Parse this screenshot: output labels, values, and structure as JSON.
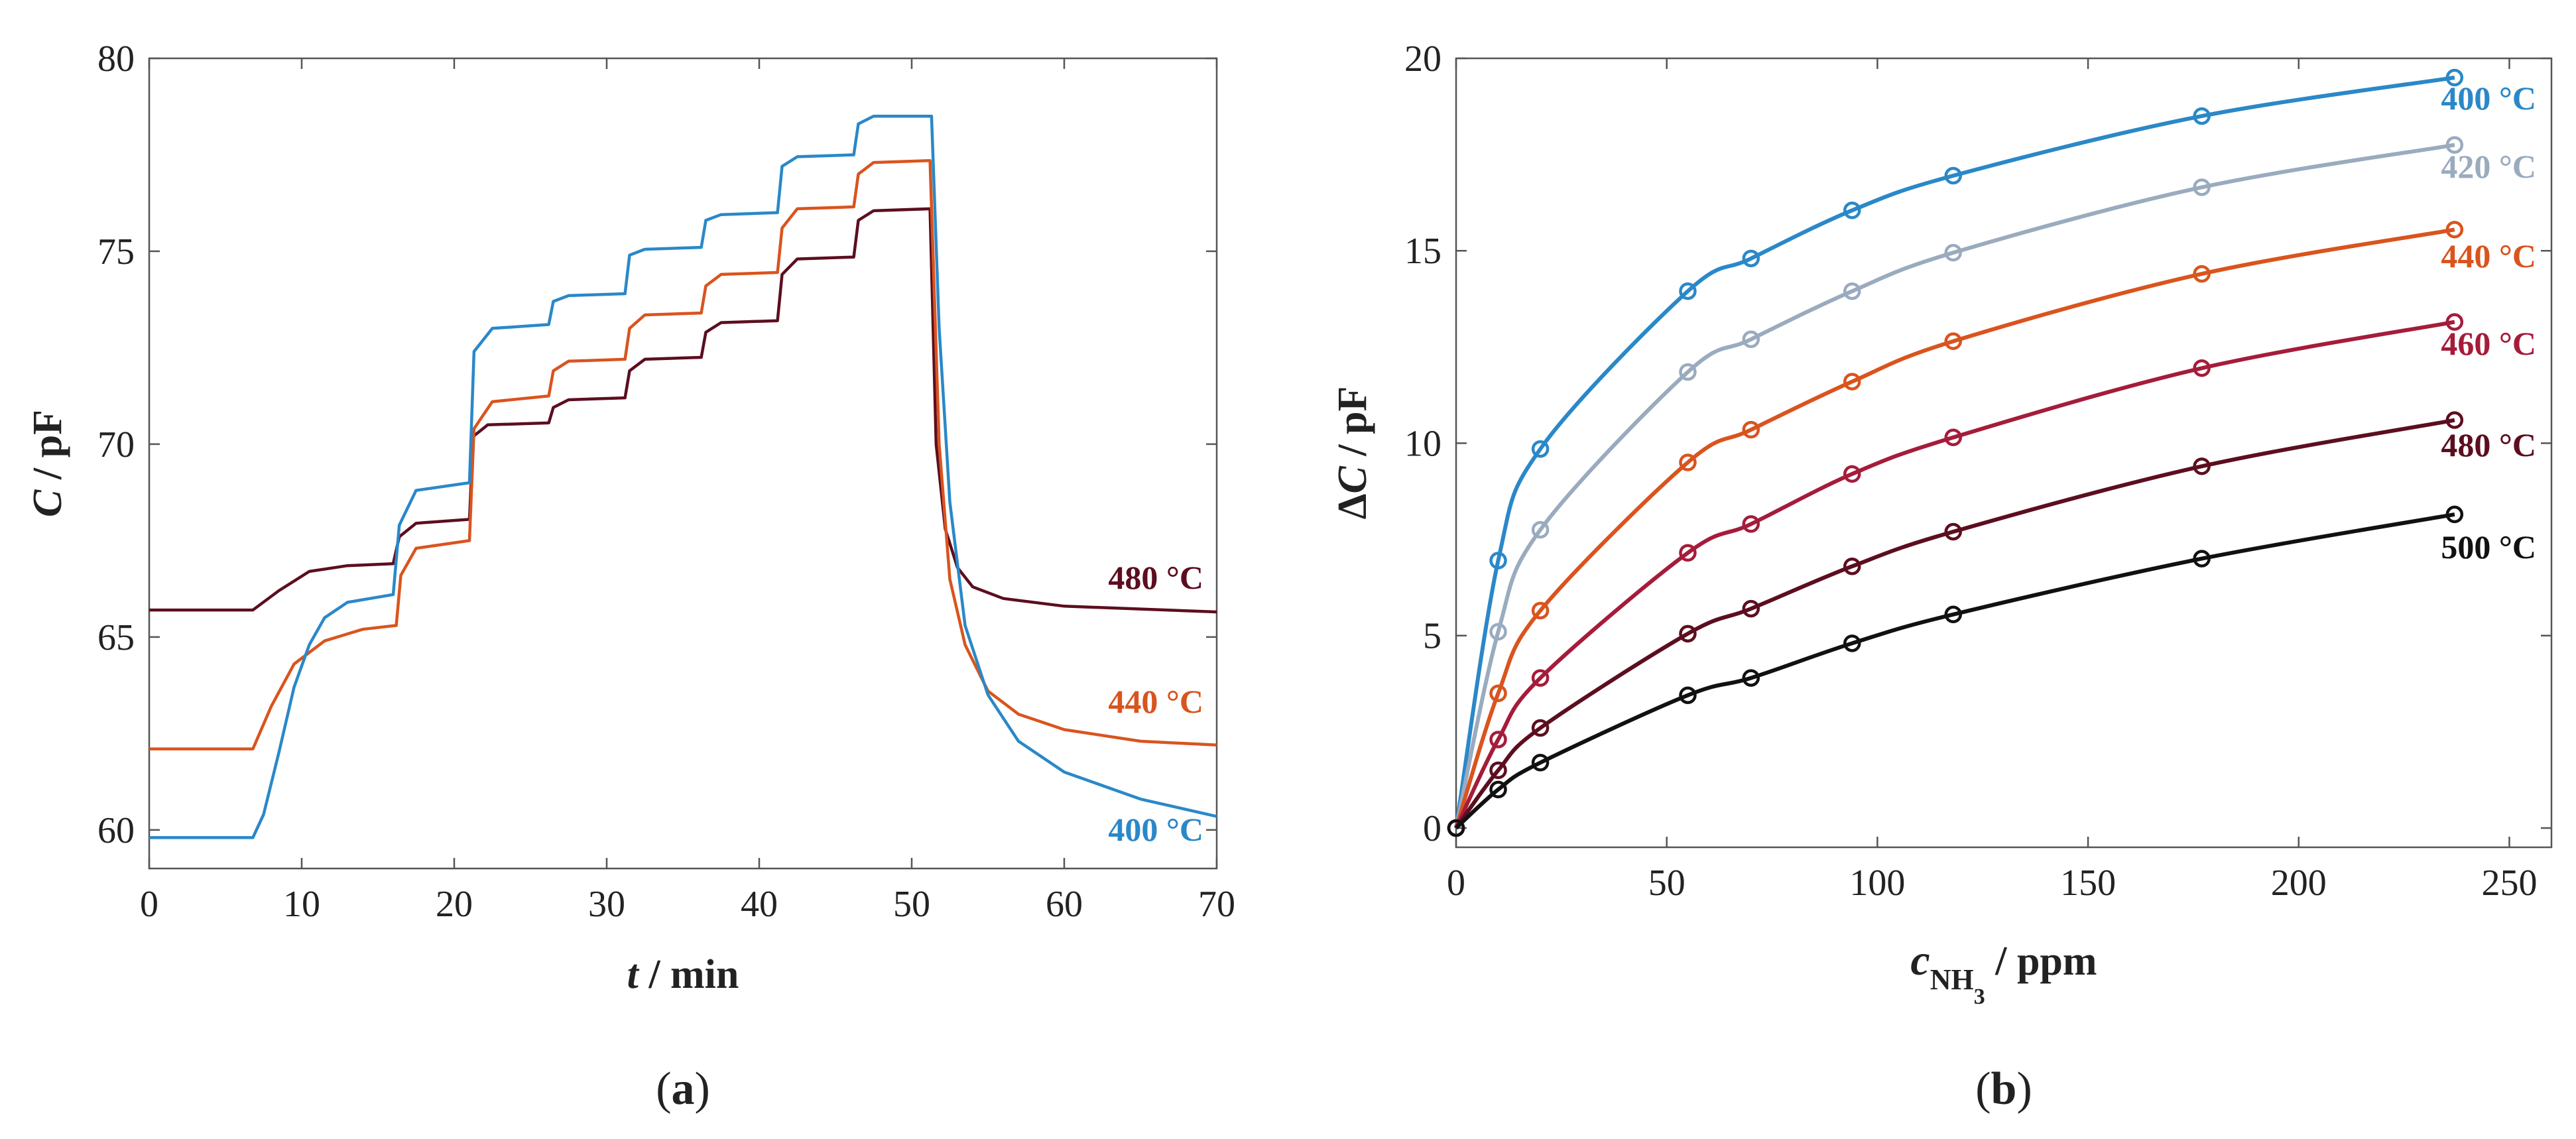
{
  "chart_data": [
    {
      "type": "line",
      "panel": "(a)",
      "panel_letter": "a",
      "xlabel_var": "t",
      "xlabel_unit": " / min",
      "ylabel_var": "C",
      "ylabel_unit": " / pF",
      "xlim": [
        0,
        70
      ],
      "ylim": [
        59,
        80
      ],
      "xticks": [
        0,
        10,
        20,
        30,
        40,
        50,
        60,
        70
      ],
      "yticks": [
        60,
        65,
        70,
        75,
        80
      ],
      "grid": false,
      "series": [
        {
          "name": "480 °C",
          "color": "#5c0e1f",
          "x": [
            0,
            6.8,
            8.5,
            10.5,
            13,
            16,
            16.4,
            17.5,
            21,
            21.25,
            22.2,
            26.2,
            26.5,
            27.5,
            31.2,
            31.5,
            32.5,
            36.2,
            36.5,
            37.5,
            41.2,
            41.5,
            42.5,
            46.2,
            46.5,
            47.5,
            51.2,
            51.6,
            52.2,
            53,
            54,
            56,
            60,
            70
          ],
          "y": [
            65.7,
            65.7,
            66.2,
            66.7,
            66.85,
            66.9,
            67.6,
            67.95,
            68.05,
            70.2,
            70.5,
            70.55,
            70.95,
            71.15,
            71.2,
            71.9,
            72.2,
            72.25,
            72.9,
            73.15,
            73.2,
            74.4,
            74.8,
            74.85,
            75.8,
            76.05,
            76.1,
            70,
            67.8,
            66.8,
            66.3,
            66.0,
            65.8,
            65.65
          ]
        },
        {
          "name": "440 °C",
          "color": "#d9541e",
          "x": [
            0,
            6.8,
            8,
            9.5,
            11.5,
            14,
            16.2,
            16.5,
            17.5,
            21,
            21.3,
            22.5,
            26.2,
            26.5,
            27.5,
            31.2,
            31.5,
            32.5,
            36.2,
            36.5,
            37.5,
            41.2,
            41.5,
            42.5,
            46.2,
            46.5,
            47.5,
            51.2,
            51.8,
            52.5,
            53.5,
            55,
            57,
            60,
            65,
            70
          ],
          "y": [
            62.1,
            62.1,
            63.2,
            64.3,
            64.9,
            65.2,
            65.3,
            66.6,
            67.3,
            67.5,
            70.4,
            71.1,
            71.25,
            71.9,
            72.15,
            72.2,
            73.0,
            73.35,
            73.4,
            74.1,
            74.4,
            74.45,
            75.6,
            76.1,
            76.15,
            77.0,
            77.3,
            77.35,
            70,
            66.5,
            64.8,
            63.6,
            63.0,
            62.6,
            62.3,
            62.2
          ]
        },
        {
          "name": "400 °C",
          "color": "#2a88c8",
          "x": [
            0,
            6.8,
            7.5,
            8.5,
            9.5,
            10.5,
            11.5,
            13,
            16,
            16.4,
            17.5,
            21,
            21.3,
            22.5,
            26.2,
            26.5,
            27.5,
            31.2,
            31.5,
            32.5,
            36.2,
            36.5,
            37.5,
            41.2,
            41.5,
            42.5,
            46.2,
            46.5,
            47.5,
            51.3,
            51.8,
            52.5,
            53.5,
            55,
            57,
            60,
            65,
            70
          ],
          "y": [
            59.8,
            59.8,
            60.4,
            62.0,
            63.7,
            64.8,
            65.5,
            65.9,
            66.1,
            67.9,
            68.8,
            69.0,
            72.4,
            73.0,
            73.1,
            73.7,
            73.85,
            73.9,
            74.9,
            75.05,
            75.1,
            75.8,
            75.95,
            76.0,
            77.2,
            77.45,
            77.5,
            78.3,
            78.5,
            78.5,
            73,
            68.5,
            65.3,
            63.5,
            62.3,
            61.5,
            60.8,
            60.35
          ]
        }
      ]
    },
    {
      "type": "line",
      "panel": "(b)",
      "panel_letter": "b",
      "xlabel_var": "c",
      "xlabel_sub": "NH",
      "xlabel_subsub": "3",
      "xlabel_unit": " / ppm",
      "ylabel_prefix": "Δ",
      "ylabel_var": "C",
      "ylabel_unit": " / pF",
      "xlim": [
        0,
        260
      ],
      "ylim": [
        -0.5,
        20
      ],
      "xticks": [
        0,
        50,
        100,
        150,
        200,
        250
      ],
      "yticks": [
        0,
        5,
        10,
        15,
        20
      ],
      "grid": false,
      "x": [
        0,
        10,
        20,
        55,
        70,
        94,
        118,
        177,
        237
      ],
      "series": [
        {
          "name": "400 °C",
          "color": "#2a88c8",
          "values": [
            0,
            6.95,
            9.85,
            13.95,
            14.8,
            16.05,
            16.95,
            18.5,
            19.5
          ]
        },
        {
          "name": "420 °C",
          "color": "#9aabbf",
          "values": [
            0,
            5.1,
            7.75,
            11.85,
            12.7,
            13.95,
            14.95,
            16.65,
            17.75
          ]
        },
        {
          "name": "440 °C",
          "color": "#d9541e",
          "values": [
            0,
            3.5,
            5.65,
            9.5,
            10.35,
            11.6,
            12.65,
            14.4,
            15.55
          ]
        },
        {
          "name": "460 °C",
          "color": "#a51c3b",
          "values": [
            0,
            2.3,
            3.9,
            7.15,
            7.9,
            9.2,
            10.15,
            11.95,
            13.15
          ]
        },
        {
          "name": "480 °C",
          "color": "#5c0e1f",
          "values": [
            0,
            1.5,
            2.6,
            5.05,
            5.7,
            6.8,
            7.7,
            9.4,
            10.6
          ]
        },
        {
          "name": "500 °C",
          "color": "#111111",
          "values": [
            0,
            1.0,
            1.7,
            3.45,
            3.9,
            4.8,
            5.55,
            7.0,
            8.15
          ]
        }
      ]
    }
  ]
}
